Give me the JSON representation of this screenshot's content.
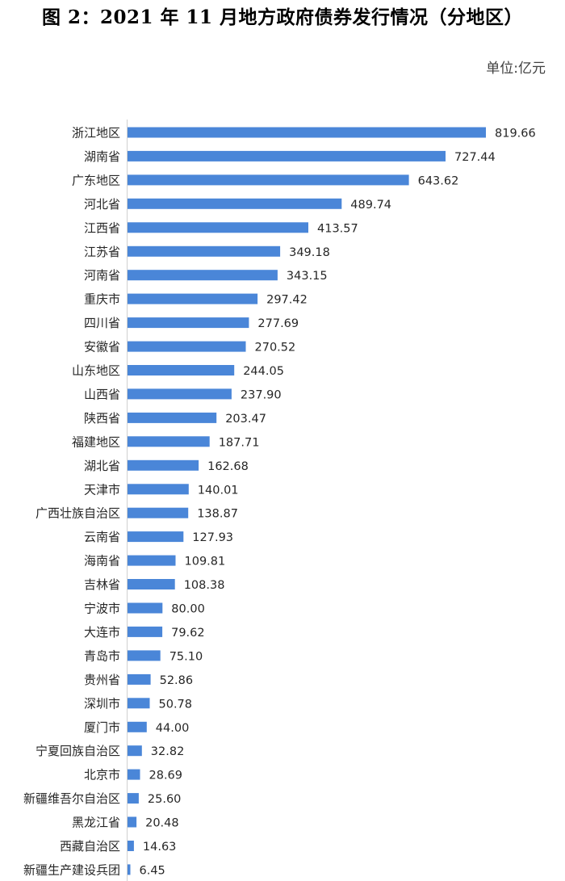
{
  "chart_data": {
    "type": "bar",
    "orientation": "horizontal",
    "title": "图 2：2021 年 11 月地方政府债券发行情况（分地区）",
    "unit_label": "单位:亿元",
    "bar_color": "#4a86d8",
    "grid": false,
    "legend": "none",
    "xlim": [
      0,
      819.66
    ],
    "categories": [
      "浙江地区",
      "湖南省",
      "广东地区",
      "河北省",
      "江西省",
      "江苏省",
      "河南省",
      "重庆市",
      "四川省",
      "安徽省",
      "山东地区",
      "山西省",
      "陕西省",
      "福建地区",
      "湖北省",
      "天津市",
      "广西壮族自治区",
      "云南省",
      "海南省",
      "吉林省",
      "宁波市",
      "大连市",
      "青岛市",
      "贵州省",
      "深圳市",
      "厦门市",
      "宁夏回族自治区",
      "北京市",
      "新疆维吾尔自治区",
      "黑龙江省",
      "西藏自治区",
      "新疆生产建设兵团"
    ],
    "values": [
      819.66,
      727.44,
      643.62,
      489.74,
      413.57,
      349.18,
      343.15,
      297.42,
      277.69,
      270.52,
      244.05,
      237.9,
      203.47,
      187.71,
      162.68,
      140.01,
      138.87,
      127.93,
      109.81,
      108.38,
      80.0,
      79.62,
      75.1,
      52.86,
      50.78,
      44.0,
      32.82,
      28.69,
      25.6,
      20.48,
      14.63,
      6.45
    ],
    "value_labels": [
      "819.66",
      "727.44",
      "643.62",
      "489.74",
      "413.57",
      "349.18",
      "343.15",
      "297.42",
      "277.69",
      "270.52",
      "244.05",
      "237.90",
      "203.47",
      "187.71",
      "162.68",
      "140.01",
      "138.87",
      "127.93",
      "109.81",
      "108.38",
      "80.00",
      "79.62",
      "75.10",
      "52.86",
      "50.78",
      "44.00",
      "32.82",
      "28.69",
      "25.60",
      "20.48",
      "14.63",
      "6.45"
    ]
  }
}
